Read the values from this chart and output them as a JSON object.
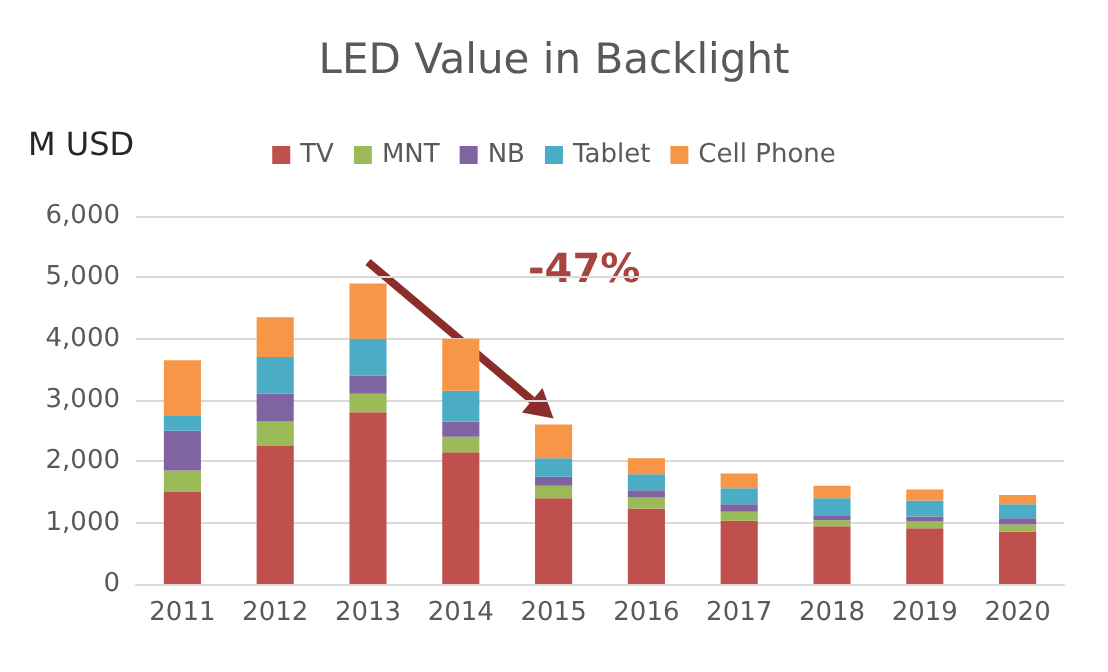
{
  "chart_data": {
    "type": "bar",
    "title": "LED Value in Backlight",
    "ylabel": "M USD",
    "stacked": true,
    "categories": [
      "2011",
      "2012",
      "2013",
      "2014",
      "2015",
      "2016",
      "2017",
      "2018",
      "2019",
      "2020"
    ],
    "series": [
      {
        "name": "TV",
        "color": "#c0504d",
        "values": [
          1500,
          2250,
          2800,
          2150,
          1400,
          1230,
          1030,
          940,
          910,
          850
        ]
      },
      {
        "name": "MNT",
        "color": "#9bbb59",
        "values": [
          350,
          400,
          300,
          250,
          200,
          180,
          150,
          100,
          110,
          120
        ]
      },
      {
        "name": "NB",
        "color": "#8064a2",
        "values": [
          650,
          450,
          300,
          250,
          150,
          120,
          120,
          80,
          80,
          100
        ]
      },
      {
        "name": "Tablet",
        "color": "#4bacc6",
        "values": [
          250,
          600,
          600,
          500,
          300,
          260,
          260,
          280,
          260,
          230
        ]
      },
      {
        "name": "Cell Phone",
        "color": "#f79646",
        "values": [
          900,
          650,
          900,
          850,
          550,
          260,
          240,
          200,
          180,
          150
        ]
      }
    ],
    "ylim": [
      0,
      6000
    ],
    "yticks": [
      0,
      {
        "value": 1000,
        "label": "1,000"
      },
      {
        "value": 2000,
        "label": "2,000"
      },
      {
        "value": 3000,
        "label": "3,000"
      },
      {
        "value": 4000,
        "label": "4,000"
      },
      {
        "value": 5000,
        "label": "5,000"
      },
      {
        "value": 6000,
        "label": "6,000"
      }
    ],
    "grid": "y",
    "legend": "top",
    "annotations": [
      "-47%"
    ]
  }
}
